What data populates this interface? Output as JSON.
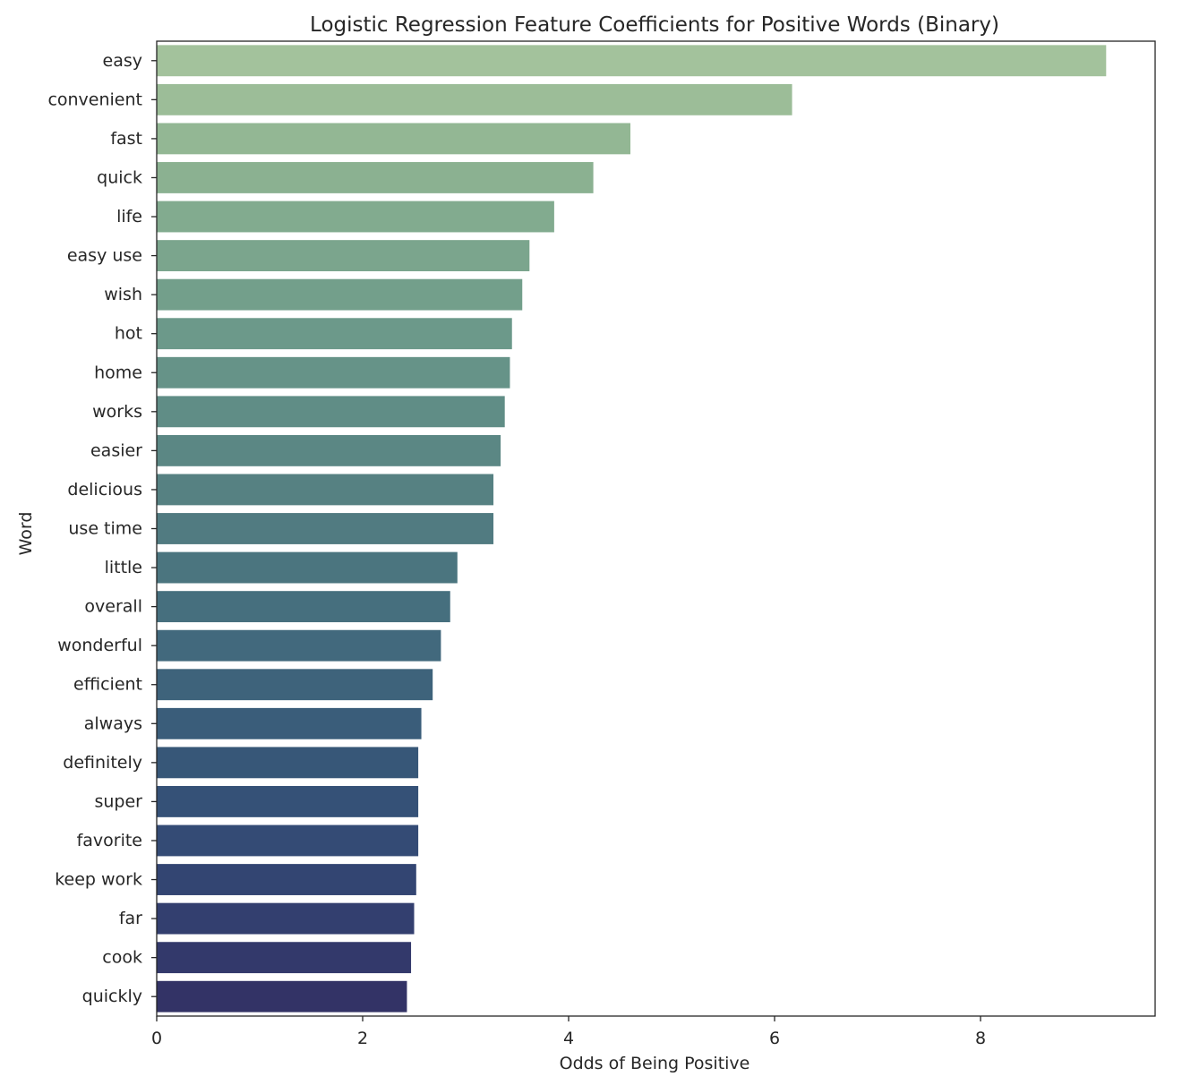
{
  "chart_data": {
    "type": "bar",
    "orientation": "horizontal",
    "title": "Logistic Regression Feature Coefficients for Positive Words (Binary)",
    "xlabel": "Odds of Being Positive",
    "ylabel": "Word",
    "xlim": [
      0,
      9.7
    ],
    "xticks": [
      0,
      2,
      4,
      6,
      8
    ],
    "grid": false,
    "categories": [
      "easy",
      "convenient",
      "fast",
      "quick",
      "life",
      "easy use",
      "wish",
      "hot",
      "home",
      "works",
      "easier",
      "delicious",
      "use time",
      "little",
      "overall",
      "wonderful",
      "efficient",
      "always",
      "definitely",
      "super",
      "favorite",
      "keep work",
      "far",
      "cook",
      "quickly"
    ],
    "values": [
      9.22,
      6.17,
      4.6,
      4.24,
      3.86,
      3.62,
      3.55,
      3.45,
      3.43,
      3.38,
      3.34,
      3.27,
      3.27,
      2.92,
      2.85,
      2.76,
      2.68,
      2.57,
      2.54,
      2.54,
      2.54,
      2.52,
      2.5,
      2.47,
      2.43
    ],
    "colors": [
      "#a3c29c",
      "#9cbd98",
      "#93b794",
      "#8bb191",
      "#82ab8f",
      "#7ba58d",
      "#739f8b",
      "#6c998a",
      "#669388",
      "#608d86",
      "#5b8784",
      "#568182",
      "#517b81",
      "#4b757f",
      "#466f7e",
      "#42697d",
      "#3e637b",
      "#3a5d7a",
      "#375778",
      "#355177",
      "#344b75",
      "#334572",
      "#333f6f",
      "#33396b",
      "#333366"
    ]
  }
}
